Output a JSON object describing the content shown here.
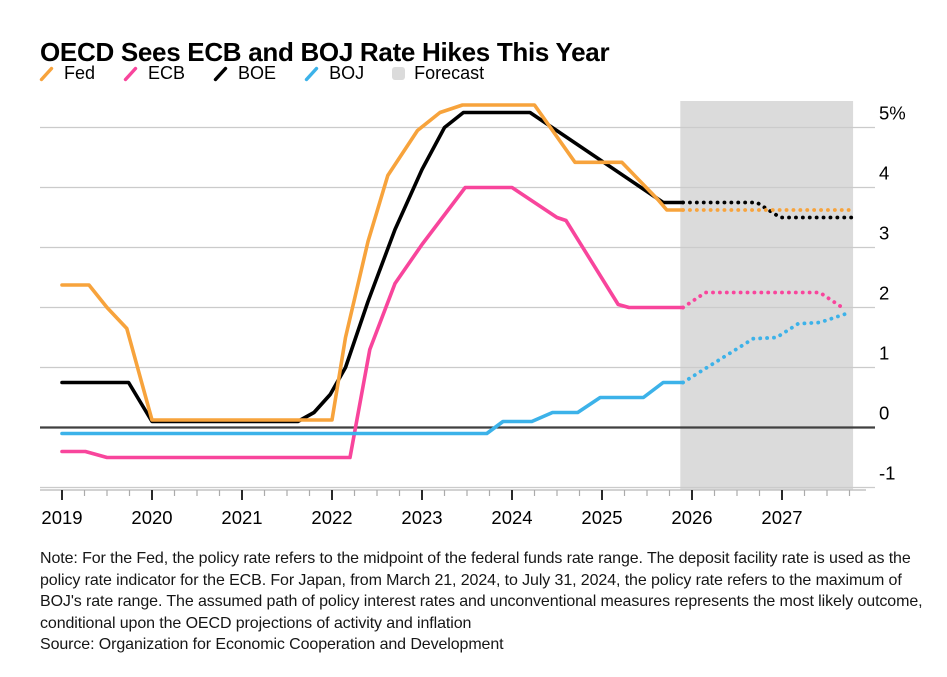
{
  "title": "OECD Sees ECB and BOJ Rate Hikes This Year",
  "legend": {
    "items": [
      {
        "label": "Fed",
        "color": "#F7A33C",
        "marker": "line"
      },
      {
        "label": "ECB",
        "color": "#F8459C",
        "marker": "line"
      },
      {
        "label": "BOE",
        "color": "#000000",
        "marker": "line"
      },
      {
        "label": "BOJ",
        "color": "#3CB2E9",
        "marker": "line"
      },
      {
        "label": "Forecast",
        "color": "#DBDBDB",
        "marker": "box"
      }
    ]
  },
  "footer": {
    "note": "Note: For the Fed, the policy rate refers to the midpoint of the federal funds rate range. The deposit facility rate is used as the policy rate indicator for the ECB. For Japan, from March 21, 2024, to July 31, 2024, the policy rate refers to the maximum of BOJ's rate range. The assumed path of policy interest rates and unconventional measures represents the most likely outcome, conditional upon the OECD projections of activity and inflation",
    "source": "Source: Organization for Economic Cooperation and Development"
  },
  "chart_data": {
    "type": "line",
    "title": "OECD Sees ECB and BOJ Rate Hikes This Year",
    "x_axis": {
      "unit": "year",
      "major_ticks": [
        2019,
        2020,
        2021,
        2022,
        2023,
        2024,
        2025,
        2026,
        2027
      ],
      "labels": [
        "2019",
        "2020",
        "2021",
        "2022",
        "2023",
        "2024",
        "2025",
        "2026",
        "2027"
      ],
      "minor_tick_interval": 0.25,
      "range": [
        2018.75,
        2027.93
      ]
    },
    "y_axis": {
      "unit": "%",
      "ticks": [
        5,
        4,
        3,
        2,
        1,
        0,
        -1
      ],
      "labels": [
        "5%",
        "4",
        "3",
        "2",
        "1",
        "0",
        "-1"
      ],
      "range": [
        -1.05,
        5.45
      ],
      "zero_line": true
    },
    "forecast_band": {
      "label": "Forecast",
      "start": 2025.87,
      "end": 2027.79,
      "color": "#DBDBDB"
    },
    "series": [
      {
        "name": "BOE",
        "color": "#000000",
        "solid": [
          [
            2019.0,
            0.75
          ],
          [
            2019.74,
            0.75
          ],
          [
            2020.0,
            0.1
          ],
          [
            2021.62,
            0.1
          ],
          [
            2021.8,
            0.25
          ],
          [
            2021.98,
            0.55
          ],
          [
            2022.15,
            1.0
          ],
          [
            2022.4,
            2.1
          ],
          [
            2022.7,
            3.3
          ],
          [
            2023.0,
            4.3
          ],
          [
            2023.25,
            5.0
          ],
          [
            2023.46,
            5.25
          ],
          [
            2024.2,
            5.25
          ],
          [
            2025.68,
            3.75
          ],
          [
            2025.9,
            3.75
          ]
        ],
        "forecast_dotted": [
          [
            2025.9,
            3.75
          ],
          [
            2026.72,
            3.75
          ],
          [
            2026.98,
            3.5
          ],
          [
            2027.78,
            3.5
          ]
        ]
      },
      {
        "name": "Fed",
        "color": "#F7A33C",
        "solid": [
          [
            2019.0,
            2.375
          ],
          [
            2019.3,
            2.375
          ],
          [
            2019.5,
            2.0
          ],
          [
            2019.72,
            1.65
          ],
          [
            2020.0,
            0.125
          ],
          [
            2022.0,
            0.125
          ],
          [
            2022.15,
            1.5
          ],
          [
            2022.4,
            3.1
          ],
          [
            2022.62,
            4.2
          ],
          [
            2022.95,
            4.95
          ],
          [
            2023.2,
            5.25
          ],
          [
            2023.45,
            5.375
          ],
          [
            2024.25,
            5.375
          ],
          [
            2024.7,
            4.42
          ],
          [
            2025.22,
            4.42
          ],
          [
            2025.62,
            3.8
          ],
          [
            2025.72,
            3.625
          ],
          [
            2025.9,
            3.625
          ]
        ],
        "forecast_dotted": [
          [
            2025.9,
            3.625
          ],
          [
            2027.8,
            3.625
          ]
        ]
      },
      {
        "name": "ECB",
        "color": "#F8459C",
        "solid": [
          [
            2019.0,
            -0.4
          ],
          [
            2019.26,
            -0.4
          ],
          [
            2019.5,
            -0.5
          ],
          [
            2022.2,
            -0.5
          ],
          [
            2022.42,
            1.3
          ],
          [
            2022.7,
            2.4
          ],
          [
            2023.0,
            3.05
          ],
          [
            2023.48,
            4.0
          ],
          [
            2024.0,
            4.0
          ],
          [
            2024.5,
            3.5
          ],
          [
            2024.6,
            3.45
          ],
          [
            2025.18,
            2.05
          ],
          [
            2025.3,
            2.0
          ],
          [
            2025.9,
            2.0
          ]
        ],
        "forecast_dotted": [
          [
            2025.9,
            2.0
          ],
          [
            2026.15,
            2.25
          ],
          [
            2027.42,
            2.25
          ],
          [
            2027.7,
            1.97
          ]
        ]
      },
      {
        "name": "BOJ",
        "color": "#3CB2E9",
        "solid": [
          [
            2019.0,
            -0.1
          ],
          [
            2023.72,
            -0.1
          ],
          [
            2023.9,
            0.1
          ],
          [
            2024.22,
            0.1
          ],
          [
            2024.45,
            0.25
          ],
          [
            2024.73,
            0.25
          ],
          [
            2024.98,
            0.5
          ],
          [
            2025.46,
            0.5
          ],
          [
            2025.68,
            0.75
          ],
          [
            2025.9,
            0.75
          ]
        ],
        "forecast_dotted": [
          [
            2025.9,
            0.75
          ],
          [
            2026.68,
            1.48
          ],
          [
            2026.94,
            1.5
          ],
          [
            2027.18,
            1.73
          ],
          [
            2027.42,
            1.75
          ],
          [
            2027.72,
            1.9
          ]
        ]
      }
    ],
    "style": {
      "grid_color": "#CBCBCB",
      "zero_line_color": "#404040",
      "axis_line_color": "#C4C4C4",
      "major_tick_color": "#2A2A2A",
      "minor_tick_color": "#ABABAB"
    }
  }
}
